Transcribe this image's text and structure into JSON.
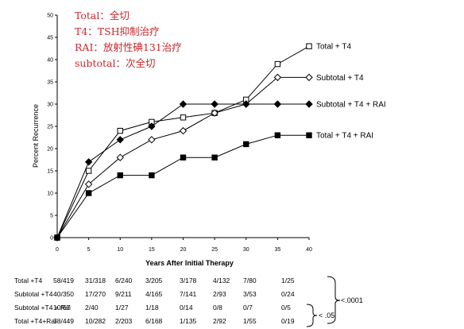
{
  "annotations": [
    "Total：全切",
    "T4：TSH抑制治疗",
    "RAI：放射性碘131治疗",
    "subtotal：次全切"
  ],
  "chart_data": {
    "type": "line",
    "xlabel": "Years After Initial Therapy",
    "ylabel": "Percent Recurrence",
    "xlim": [
      0,
      40
    ],
    "ylim": [
      0,
      50
    ],
    "x_ticks": [
      0,
      5,
      10,
      15,
      20,
      25,
      30,
      35,
      40
    ],
    "y_ticks": [
      0,
      5,
      10,
      15,
      20,
      25,
      30,
      35,
      40,
      45,
      50
    ],
    "grid": false,
    "legend": "right, labels at line ends",
    "series": [
      {
        "name": "Total + T4",
        "marker": "open-square",
        "x": [
          0,
          5,
          10,
          15,
          20,
          25,
          30,
          35,
          40
        ],
        "y": [
          0,
          15,
          24,
          26,
          27,
          28,
          31,
          39,
          43
        ]
      },
      {
        "name": "Subtotal + T4",
        "marker": "open-diamond",
        "x": [
          0,
          5,
          10,
          15,
          20,
          25,
          30,
          35,
          40
        ],
        "y": [
          0,
          12,
          18,
          22,
          24,
          28,
          30,
          36,
          36
        ]
      },
      {
        "name": "Subtotal + T4 + RAI",
        "marker": "filled-diamond",
        "x": [
          0,
          5,
          10,
          15,
          20,
          25,
          30,
          35,
          40
        ],
        "y": [
          0,
          17,
          22,
          25,
          30,
          30,
          30,
          30,
          30
        ]
      },
      {
        "name": "Total + T4 + RAI",
        "marker": "filled-square",
        "step": true,
        "x": [
          0,
          5,
          10,
          15,
          20,
          25,
          30,
          35,
          40
        ],
        "y": [
          0,
          10,
          14,
          14,
          18,
          18,
          21,
          23,
          23
        ]
      }
    ]
  },
  "table": {
    "rows": [
      {
        "label": "Total +T4",
        "values": [
          "58/419",
          "31/318",
          "6/240",
          "3/205",
          "3/178",
          "4/132",
          "7/80",
          "1/25"
        ]
      },
      {
        "label": "Subtotal +T4",
        "values": [
          "40/350",
          "17/270",
          "9/211",
          "4/165",
          "7/141",
          "2/93",
          "3/53",
          "0/24"
        ]
      },
      {
        "label": "Subtotal +T4 + Rai",
        "values": [
          "10/67",
          "2/40",
          "1/27",
          "1/18",
          "0/14",
          "0/8",
          "0/7",
          "0/5"
        ]
      },
      {
        "label": "Total +T4+Rai",
        "values": [
          "38/449",
          "10/282",
          "2/203",
          "6/168",
          "1/135",
          "2/92",
          "1/55",
          "0/19"
        ]
      }
    ],
    "p_values": [
      "<.0001",
      "< .05"
    ]
  }
}
